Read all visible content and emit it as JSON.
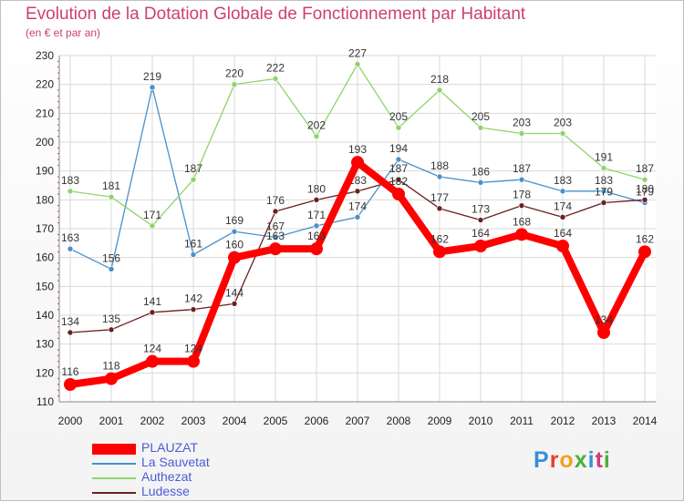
{
  "title": "Evolution de la Dotation Globale de Fonctionnement par Habitant",
  "subtitle": "(en € et par an)",
  "logo_text": "Proxiti",
  "colors": {
    "PLAUZAT": "#ff0000",
    "La Sauvetat": "#4a90c8",
    "Authezat": "#8fd36a",
    "Ludesse": "#6b1f1f",
    "axis_text": "#222222",
    "title": "#cc3f77"
  },
  "chart_data": {
    "type": "line",
    "title": "Evolution de la Dotation Globale de Fonctionnement par Habitant",
    "subtitle": "(en € et par an)",
    "x": [
      "2000",
      "2001",
      "2002",
      "2003",
      "2004",
      "2005",
      "2006",
      "2007",
      "2008",
      "2009",
      "2010",
      "2011",
      "2012",
      "2013",
      "2014"
    ],
    "ylim": [
      110,
      230
    ],
    "yticks": [
      110,
      120,
      130,
      140,
      150,
      160,
      170,
      180,
      190,
      200,
      210,
      220,
      230
    ],
    "grid": true,
    "legend_position": "bottom-left",
    "series": [
      {
        "name": "PLAUZAT",
        "values": [
          116,
          118,
          124,
          124,
          160,
          163,
          163,
          193,
          182,
          162,
          164,
          168,
          164,
          134,
          162
        ]
      },
      {
        "name": "La Sauvetat",
        "values": [
          163,
          156,
          219,
          161,
          169,
          167,
          171,
          174,
          194,
          188,
          186,
          187,
          183,
          183,
          179
        ]
      },
      {
        "name": "Authezat",
        "values": [
          183,
          181,
          171,
          187,
          220,
          222,
          202,
          227,
          205,
          218,
          205,
          203,
          203,
          191,
          187
        ]
      },
      {
        "name": "Ludesse",
        "values": [
          134,
          135,
          141,
          142,
          144,
          176,
          180,
          183,
          187,
          177,
          173,
          178,
          174,
          179,
          180
        ]
      }
    ]
  }
}
